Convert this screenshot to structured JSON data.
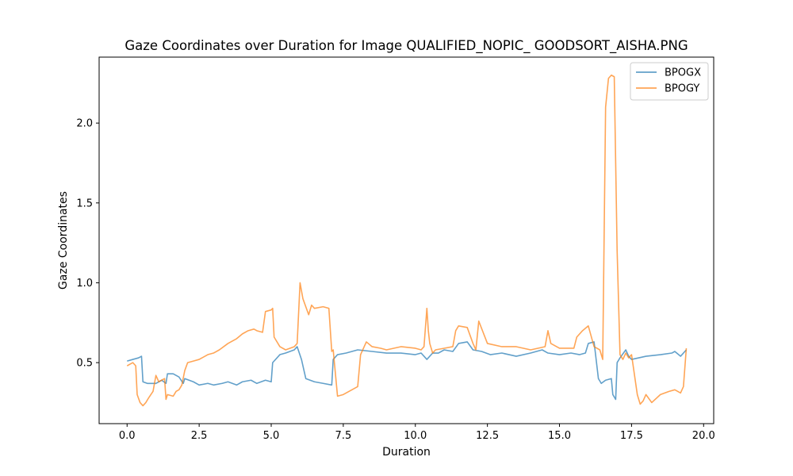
{
  "chart_data": {
    "type": "line",
    "title": "Gaze Coordinates over Duration for Image QUALIFIED_NOPIC_ GOODSORT_AISHA.PNG",
    "xlabel": "Duration",
    "ylabel": "Gaze Coordinates",
    "xlim": [
      -0.97,
      20.35
    ],
    "ylim": [
      0.118,
      2.413
    ],
    "xticks": [
      0.0,
      2.5,
      5.0,
      7.5,
      10.0,
      12.5,
      15.0,
      17.5,
      20.0
    ],
    "xtick_labels": [
      "0.0",
      "2.5",
      "5.0",
      "7.5",
      "10.0",
      "12.5",
      "15.0",
      "17.5",
      "20.0"
    ],
    "yticks": [
      0.5,
      1.0,
      1.5,
      2.0
    ],
    "ytick_labels": [
      "0.5",
      "1.0",
      "1.5",
      "2.0"
    ],
    "grid": false,
    "legend_position": "top-right",
    "series": [
      {
        "name": "BPOGX",
        "color": "#1f77b4",
        "opacity": 0.7,
        "x": [
          0.0,
          0.2,
          0.4,
          0.5,
          0.55,
          0.7,
          1.0,
          1.2,
          1.35,
          1.4,
          1.6,
          1.8,
          1.95,
          2.0,
          2.3,
          2.5,
          2.8,
          3.0,
          3.3,
          3.5,
          3.8,
          4.0,
          4.3,
          4.5,
          4.8,
          5.0,
          5.05,
          5.3,
          5.5,
          5.8,
          5.9,
          6.05,
          6.2,
          6.5,
          6.8,
          7.1,
          7.15,
          7.3,
          7.6,
          8.0,
          8.5,
          9.0,
          9.5,
          10.0,
          10.2,
          10.4,
          10.6,
          10.8,
          11.0,
          11.3,
          11.5,
          11.8,
          12.0,
          12.3,
          12.6,
          13.0,
          13.5,
          14.0,
          14.4,
          14.6,
          15.0,
          15.4,
          15.7,
          15.9,
          16.0,
          16.2,
          16.35,
          16.45,
          16.6,
          16.8,
          16.85,
          16.95,
          17.0,
          17.1,
          17.3,
          17.4,
          17.5,
          18.0,
          18.5,
          18.9,
          19.0,
          19.2,
          19.4
        ],
        "y": [
          0.51,
          0.52,
          0.53,
          0.54,
          0.38,
          0.37,
          0.37,
          0.39,
          0.37,
          0.43,
          0.43,
          0.41,
          0.37,
          0.4,
          0.38,
          0.36,
          0.37,
          0.36,
          0.37,
          0.38,
          0.36,
          0.38,
          0.39,
          0.37,
          0.39,
          0.38,
          0.5,
          0.55,
          0.56,
          0.58,
          0.6,
          0.52,
          0.4,
          0.38,
          0.37,
          0.36,
          0.52,
          0.55,
          0.56,
          0.58,
          0.57,
          0.56,
          0.56,
          0.55,
          0.56,
          0.52,
          0.56,
          0.56,
          0.58,
          0.57,
          0.62,
          0.63,
          0.58,
          0.57,
          0.55,
          0.56,
          0.54,
          0.56,
          0.58,
          0.56,
          0.55,
          0.56,
          0.55,
          0.56,
          0.62,
          0.63,
          0.4,
          0.37,
          0.39,
          0.4,
          0.3,
          0.27,
          0.5,
          0.53,
          0.58,
          0.54,
          0.52,
          0.54,
          0.55,
          0.56,
          0.57,
          0.54,
          0.58
        ]
      },
      {
        "name": "BPOGY",
        "color": "#ff7f0e",
        "opacity": 0.7,
        "x": [
          0.0,
          0.1,
          0.2,
          0.3,
          0.35,
          0.45,
          0.55,
          0.65,
          0.75,
          0.9,
          1.0,
          1.1,
          1.3,
          1.35,
          1.4,
          1.6,
          1.7,
          1.8,
          1.9,
          2.0,
          2.1,
          2.3,
          2.5,
          2.8,
          3.0,
          3.2,
          3.5,
          3.8,
          4.0,
          4.2,
          4.4,
          4.5,
          4.7,
          4.8,
          5.0,
          5.05,
          5.1,
          5.3,
          5.5,
          5.8,
          5.9,
          6.0,
          6.1,
          6.3,
          6.4,
          6.5,
          6.8,
          7.0,
          7.1,
          7.15,
          7.3,
          7.5,
          7.8,
          8.0,
          8.1,
          8.3,
          8.5,
          8.8,
          9.0,
          9.5,
          10.0,
          10.2,
          10.3,
          10.4,
          10.45,
          10.5,
          10.6,
          10.7,
          11.0,
          11.3,
          11.4,
          11.5,
          11.8,
          12.0,
          12.1,
          12.2,
          12.5,
          13.0,
          13.5,
          14.0,
          14.5,
          14.6,
          14.7,
          15.0,
          15.5,
          15.6,
          15.8,
          16.0,
          16.2,
          16.4,
          16.5,
          16.6,
          16.7,
          16.8,
          16.9,
          17.0,
          17.1,
          17.2,
          17.3,
          17.4,
          17.5,
          17.7,
          17.8,
          17.9,
          18.0,
          18.2,
          18.5,
          18.8,
          19.0,
          19.2,
          19.3,
          19.4
        ],
        "y": [
          0.48,
          0.49,
          0.5,
          0.48,
          0.3,
          0.25,
          0.23,
          0.25,
          0.28,
          0.32,
          0.42,
          0.38,
          0.4,
          0.27,
          0.3,
          0.29,
          0.32,
          0.33,
          0.36,
          0.45,
          0.5,
          0.51,
          0.52,
          0.55,
          0.56,
          0.58,
          0.62,
          0.65,
          0.68,
          0.7,
          0.71,
          0.7,
          0.69,
          0.82,
          0.83,
          0.84,
          0.66,
          0.6,
          0.58,
          0.6,
          0.62,
          1.0,
          0.9,
          0.8,
          0.86,
          0.84,
          0.85,
          0.84,
          0.57,
          0.58,
          0.29,
          0.3,
          0.33,
          0.35,
          0.55,
          0.63,
          0.6,
          0.59,
          0.58,
          0.6,
          0.59,
          0.58,
          0.6,
          0.84,
          0.7,
          0.62,
          0.56,
          0.58,
          0.59,
          0.6,
          0.7,
          0.73,
          0.72,
          0.62,
          0.58,
          0.76,
          0.62,
          0.6,
          0.6,
          0.58,
          0.6,
          0.7,
          0.62,
          0.59,
          0.59,
          0.66,
          0.7,
          0.73,
          0.6,
          0.58,
          0.52,
          2.1,
          2.28,
          2.3,
          2.29,
          1.2,
          0.55,
          0.52,
          0.56,
          0.53,
          0.55,
          0.3,
          0.24,
          0.26,
          0.3,
          0.25,
          0.3,
          0.32,
          0.33,
          0.31,
          0.35,
          0.59
        ]
      }
    ]
  }
}
